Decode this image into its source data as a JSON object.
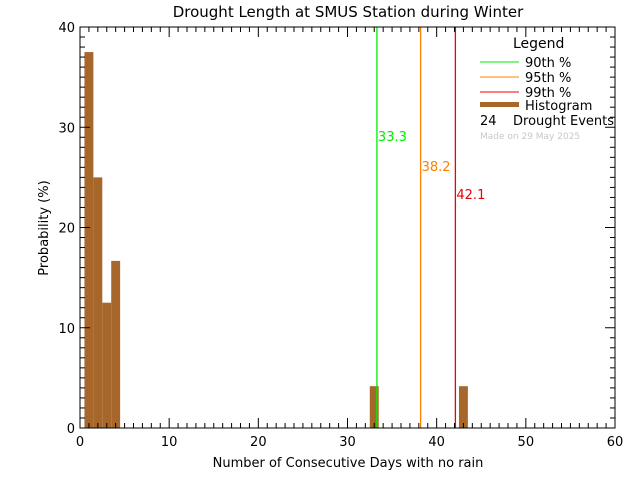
{
  "chart_data": {
    "type": "bar",
    "title": "Drought Length at SMUS Station during Winter",
    "xlabel": "Number of Consecutive Days with no rain",
    "ylabel": "Probability (%)",
    "xlim": [
      0,
      60
    ],
    "ylim": [
      0,
      40
    ],
    "xticks": [
      "0",
      "10",
      "20",
      "30",
      "40",
      "50",
      "60"
    ],
    "yticks": [
      "0",
      "10",
      "20",
      "30",
      "40"
    ],
    "histogram": {
      "x": [
        1,
        2,
        3,
        4,
        33,
        43
      ],
      "values": [
        37.5,
        25.0,
        12.5,
        16.67,
        4.17,
        4.17
      ],
      "color": "#a8672a"
    },
    "percentiles": [
      {
        "name": "90th %",
        "value": 33.3,
        "label": "33.3",
        "color": "#00ee00"
      },
      {
        "name": "95th %",
        "value": 38.2,
        "label": "38.2",
        "color": "#ff8000"
      },
      {
        "name": "99th %",
        "value": 42.1,
        "label": "42.1",
        "color": "#ee0000"
      }
    ],
    "legend": {
      "title": "Legend",
      "histogram_label": "Histogram",
      "events_count": "24",
      "events_label": "Drought Events",
      "made_on": "Made on 29 May 2025",
      "placement": "top-right"
    }
  }
}
